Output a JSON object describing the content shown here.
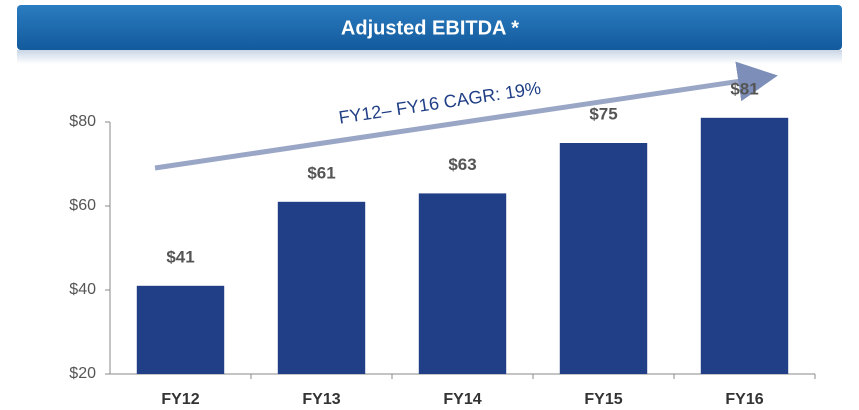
{
  "chart_data": {
    "type": "bar",
    "title": "Adjusted EBITDA *",
    "annotation": "FY12– FY16 CAGR: 19%",
    "categories": [
      "FY12",
      "FY13",
      "FY14",
      "FY15",
      "FY16"
    ],
    "values": [
      41,
      61,
      63,
      75,
      81
    ],
    "value_labels": [
      "$41",
      "$61",
      "$63",
      "$75",
      "$81"
    ],
    "color": "#203f86",
    "ylim": [
      20,
      80
    ],
    "yticks": [
      {
        "value": 20,
        "label": "$20"
      },
      {
        "value": 40,
        "label": "$40"
      },
      {
        "value": 60,
        "label": "$60"
      },
      {
        "value": 80,
        "label": "$80"
      }
    ],
    "grid": false
  }
}
